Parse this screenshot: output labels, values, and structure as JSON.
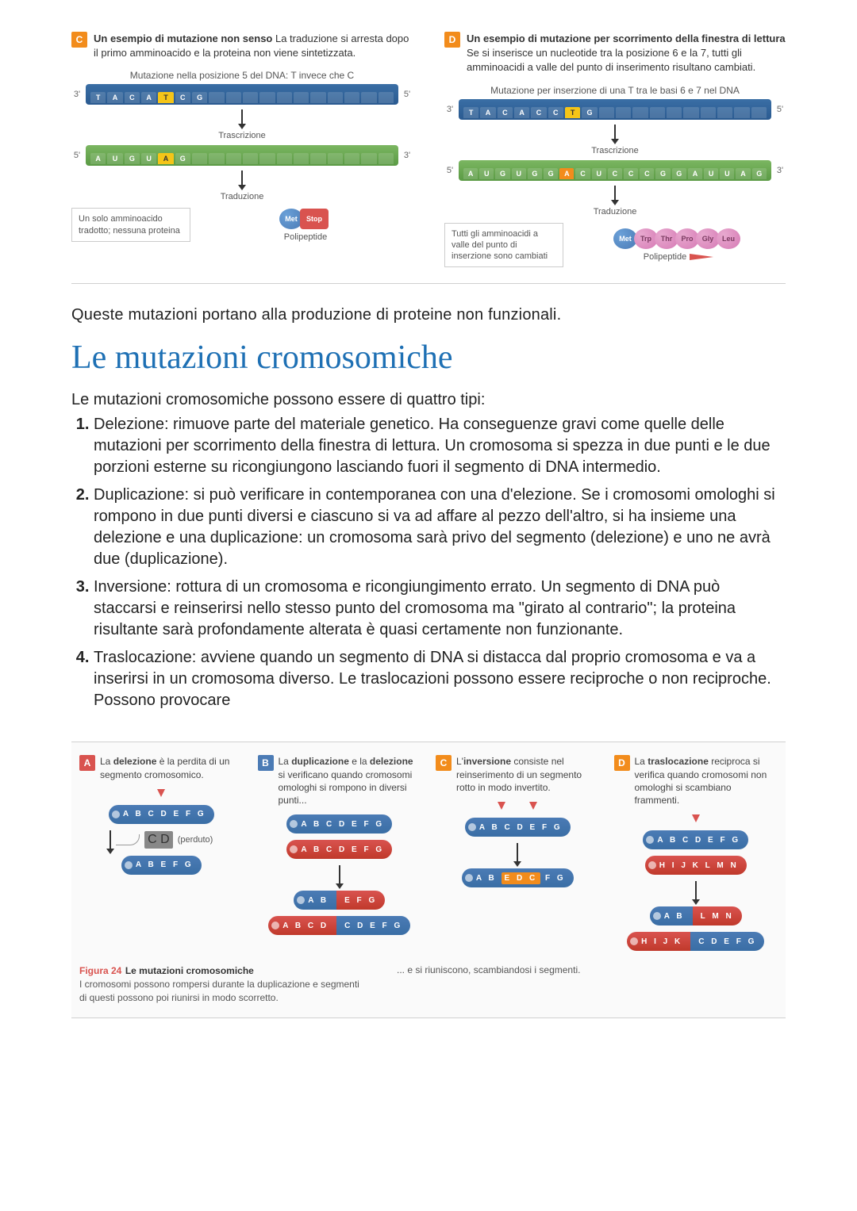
{
  "colors": {
    "orange_badge": "#f28c1c",
    "red_badge": "#d9534f",
    "blue_badge": "#4b7bb5",
    "blue_strand": "#3a6ea5",
    "green_strand": "#5a9a44",
    "highlight_yellow": "#f5c518",
    "heading_blue": "#1e70b4",
    "chrom_blue": "#4b7bb5",
    "chrom_red": "#d9534f"
  },
  "panelC": {
    "badge": "C",
    "title": "Un esempio di mutazione non senso",
    "desc": " La traduzione si arresta dopo il primo amminoacido e la proteina non viene sintetizzata.",
    "caption": "Mutazione nella posizione 5 del DNA: T invece che C",
    "dna_bases": [
      "T",
      "A",
      "C",
      "A",
      "T",
      "C",
      "G",
      "",
      "",
      "",
      "",
      "",
      "",
      "",
      "",
      "",
      "",
      ""
    ],
    "hl_index": 4,
    "rna_bases": [
      "A",
      "U",
      "G",
      "U",
      "A",
      "G",
      "",
      "",
      "",
      "",
      "",
      "",
      "",
      "",
      "",
      "",
      "",
      ""
    ],
    "step1": "Trascrizione",
    "step2": "Traduzione",
    "note": "Un solo amminoacido tradotto; nessuna proteina",
    "aa1": "Met",
    "aa2": "Stop",
    "poly_label": "Polipeptide"
  },
  "panelD": {
    "badge": "D",
    "title": "Un esempio di mutazione per scorrimento della finestra di lettura",
    "desc": " Se si inserisce un nucleotide tra la posizione 6 e la 7, tutti gli amminoacidi a valle del punto di inserimento risultano cambiati.",
    "caption": "Mutazione per inserzione di una T tra le basi 6 e 7 nel DNA",
    "dna_bases": [
      "T",
      "A",
      "C",
      "A",
      "C",
      "C",
      "T",
      "G",
      "",
      "",
      "",
      "",
      "",
      "",
      "",
      "",
      "",
      ""
    ],
    "hl_index": 6,
    "rna_bases": [
      "A",
      "U",
      "G",
      "U",
      "G",
      "G",
      "A",
      "C",
      "U",
      "C",
      "C",
      "C",
      "G",
      "G",
      "A",
      "U",
      "U",
      "A",
      "G"
    ],
    "step1": "Trascrizione",
    "step2": "Traduzione",
    "note": "Tutti gli amminoacidi a valle del punto di inserzione sono cambiati",
    "aas": [
      "Met",
      "Trp",
      "Thr",
      "Pro",
      "Gly",
      "Leu"
    ],
    "poly_label": "Polipeptide"
  },
  "note": "Queste mutazioni portano alla produzione di proteine non funzionali.",
  "heading": "Le mutazioni cromosomiche",
  "list_intro": "Le mutazioni cromosomiche possono essere di quattro tipi:",
  "items": [
    "Delezione: rimuove parte del materiale genetico. Ha conseguenze gravi come quelle delle mutazioni per scorrimento della finestra di lettura. Un cromosoma si spezza in due punti e le due porzioni esterne su ricongiungono lasciando fuori il segmento di DNA intermedio.",
    "Duplicazione: si può verificare in contemporanea con una d'elezione. Se i cromosomi omologhi si rompono in due punti diversi e ciascuno si va ad affare al pezzo dell'altro, si ha insieme una delezione e una duplicazione: un cromosoma sarà privo del segmento (delezione) e uno ne avrà due (duplicazione).",
    "Inversione: rottura di un cromosoma e ricongiungimento errato. Un segmento di DNA può staccarsi e reinserirsi nello stesso punto del cromosoma ma \"girato al contrario\"; la proteina risultante sarà profondamente alterata è quasi certamente non funzionante.",
    "Traslocazione: avviene quando un segmento di DNA si distacca dal proprio cromosoma e va a inserirsi in un cromosoma diverso. Le traslocazioni possono essere reciproche o non reciproche. Possono provocare"
  ],
  "figA": {
    "badge": "A",
    "title": "delezione",
    "desc_pre": "La ",
    "desc_post": " è la perdita di un segmento cromosomico.",
    "top": "A B C D E F G",
    "lost": "C D",
    "lost_label": "(perduto)",
    "bottom": "A B E F G"
  },
  "figB": {
    "badge": "B",
    "title": "duplicazione",
    "desc_pre": "La ",
    "desc_mid": " e la ",
    "title2": "delezione",
    "desc_post": " si verificano quando cromosomi omologhi si rompono in diversi punti...",
    "blue1": "A B C D E F G",
    "red1": "A B C D E F G",
    "blue2_left": "A B",
    "blue2_right": "E F G",
    "red2_left": "A B C D",
    "red2_right": "C D E F G"
  },
  "figC": {
    "badge": "C",
    "title": "inversione",
    "desc_pre": "L'",
    "desc_post": " consiste nel reinserimento di un segmento rotto in modo invertito.",
    "top": "A B C D E F G",
    "bottom_left": "A B",
    "bottom_mid": "E D C",
    "bottom_right": "F G"
  },
  "figD": {
    "badge": "D",
    "title": "traslocazione",
    "desc_pre": "La ",
    "desc_post": " reciproca si verifica quando cromosomi non omologhi si scambiano frammenti.",
    "blue1": "A B C D E F G",
    "red1": "H I J K L M N",
    "blue2_left": "A B",
    "blue2_right": "L M N",
    "red2_left": "H I J K",
    "red2_right": "C D E F G"
  },
  "fig_num": "Figura 24",
  "fig_title": "Le mutazioni cromosomiche",
  "fig_text1": "I cromosomi possono rompersi durante la duplicazione e segmenti di questi possono poi riunirsi in modo scorretto.",
  "fig_text2": "... e si riuniscono, scambiandosi i segmenti."
}
